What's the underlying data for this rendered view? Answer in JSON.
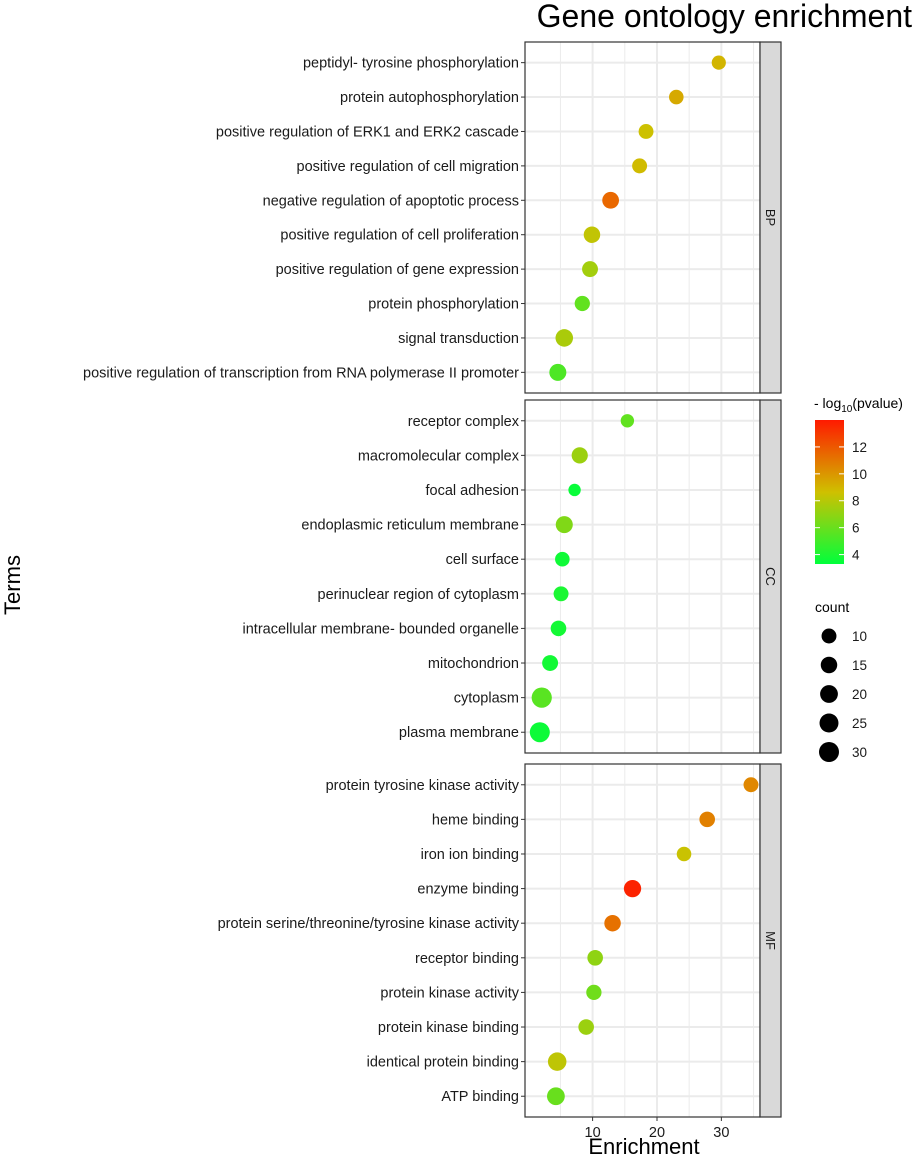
{
  "chart_data": {
    "type": "scatter",
    "title": "Gene ontology enrichment",
    "xlabel": "Enrichment",
    "ylabel": "Terms",
    "xlim": [
      -0.5,
      36
    ],
    "x_ticks": [
      10,
      20,
      30
    ],
    "grid": true,
    "facets": [
      {
        "name": "BP",
        "terms": [
          {
            "label": "peptidyl- tyrosine phosphorylation",
            "enrichment": 29.6,
            "neg_log10_pvalue": 9.0,
            "count": 8
          },
          {
            "label": "protein autophosphorylation",
            "enrichment": 23.0,
            "neg_log10_pvalue": 9.4,
            "count": 9
          },
          {
            "label": "positive regulation of ERK1 and ERK2 cascade",
            "enrichment": 18.3,
            "neg_log10_pvalue": 8.6,
            "count": 10
          },
          {
            "label": "positive regulation of cell migration",
            "enrichment": 17.3,
            "neg_log10_pvalue": 8.8,
            "count": 10
          },
          {
            "label": "negative regulation of apoptotic process",
            "enrichment": 12.8,
            "neg_log10_pvalue": 11.5,
            "count": 16
          },
          {
            "label": "positive regulation of cell proliferation",
            "enrichment": 9.9,
            "neg_log10_pvalue": 8.3,
            "count": 15
          },
          {
            "label": "positive regulation of gene expression",
            "enrichment": 9.6,
            "neg_log10_pvalue": 7.5,
            "count": 13
          },
          {
            "label": "protein phosphorylation",
            "enrichment": 8.4,
            "neg_log10_pvalue": 5.8,
            "count": 11
          },
          {
            "label": "signal transduction",
            "enrichment": 5.6,
            "neg_log10_pvalue": 7.7,
            "count": 19
          },
          {
            "label": "positive regulation of transcription from RNA polymerase II promoter",
            "enrichment": 4.6,
            "neg_log10_pvalue": 5.3,
            "count": 17
          }
        ]
      },
      {
        "name": "CC",
        "terms": [
          {
            "label": "receptor complex",
            "enrichment": 15.4,
            "neg_log10_pvalue": 5.8,
            "count": 6
          },
          {
            "label": "macromolecular complex",
            "enrichment": 8.0,
            "neg_log10_pvalue": 7.3,
            "count": 14
          },
          {
            "label": "focal adhesion",
            "enrichment": 7.2,
            "neg_log10_pvalue": 3.5,
            "count": 4
          },
          {
            "label": "endoplasmic reticulum membrane",
            "enrichment": 5.6,
            "neg_log10_pvalue": 6.6,
            "count": 17
          },
          {
            "label": "cell surface",
            "enrichment": 5.3,
            "neg_log10_pvalue": 3.7,
            "count": 9
          },
          {
            "label": "perinuclear region of cytoplasm",
            "enrichment": 5.1,
            "neg_log10_pvalue": 4.0,
            "count": 10
          },
          {
            "label": "intracellular membrane- bounded organelle",
            "enrichment": 4.7,
            "neg_log10_pvalue": 3.8,
            "count": 12
          },
          {
            "label": "mitochondrion",
            "enrichment": 3.4,
            "neg_log10_pvalue": 3.8,
            "count": 13
          },
          {
            "label": "cytoplasm",
            "enrichment": 2.1,
            "neg_log10_pvalue": 5.6,
            "count": 31
          },
          {
            "label": "plasma membrane",
            "enrichment": 1.8,
            "neg_log10_pvalue": 3.6,
            "count": 30
          }
        ]
      },
      {
        "name": "MF",
        "terms": [
          {
            "label": "protein tyrosine kinase activity",
            "enrichment": 34.6,
            "neg_log10_pvalue": 10.5,
            "count": 10
          },
          {
            "label": "heme binding",
            "enrichment": 27.8,
            "neg_log10_pvalue": 10.7,
            "count": 12
          },
          {
            "label": "iron ion binding",
            "enrichment": 24.2,
            "neg_log10_pvalue": 8.5,
            "count": 9
          },
          {
            "label": "enzyme binding",
            "enrichment": 16.2,
            "neg_log10_pvalue": 13.7,
            "count": 18
          },
          {
            "label": "protein serine/threonine/tyrosine kinase activity",
            "enrichment": 13.1,
            "neg_log10_pvalue": 11.2,
            "count": 15
          },
          {
            "label": "receptor binding",
            "enrichment": 10.4,
            "neg_log10_pvalue": 7.0,
            "count": 12
          },
          {
            "label": "protein kinase activity",
            "enrichment": 10.2,
            "neg_log10_pvalue": 6.2,
            "count": 11
          },
          {
            "label": "protein kinase binding",
            "enrichment": 9.0,
            "neg_log10_pvalue": 7.3,
            "count": 12
          },
          {
            "label": "identical protein binding",
            "enrichment": 4.5,
            "neg_log10_pvalue": 8.2,
            "count": 23
          },
          {
            "label": "ATP binding",
            "enrichment": 4.3,
            "neg_log10_pvalue": 6.0,
            "count": 20
          }
        ]
      }
    ],
    "legend": {
      "placement": "right",
      "color_title_prefix": "- log",
      "color_title_sub": "10",
      "color_title_suffix": "(pvalue)",
      "color_range": [
        3.3,
        14
      ],
      "color_ticks": [
        4,
        6,
        8,
        10,
        12
      ],
      "color_low": "#00ff3b",
      "color_mid": "#cfc000",
      "color_high": "#ff1a00",
      "size_title": "count",
      "size_breaks": [
        10,
        15,
        20,
        25,
        30
      ]
    },
    "panel_bg": "#ffffff",
    "grid_color": "#ebebeb",
    "strip_fill": "#d9d9d9"
  }
}
